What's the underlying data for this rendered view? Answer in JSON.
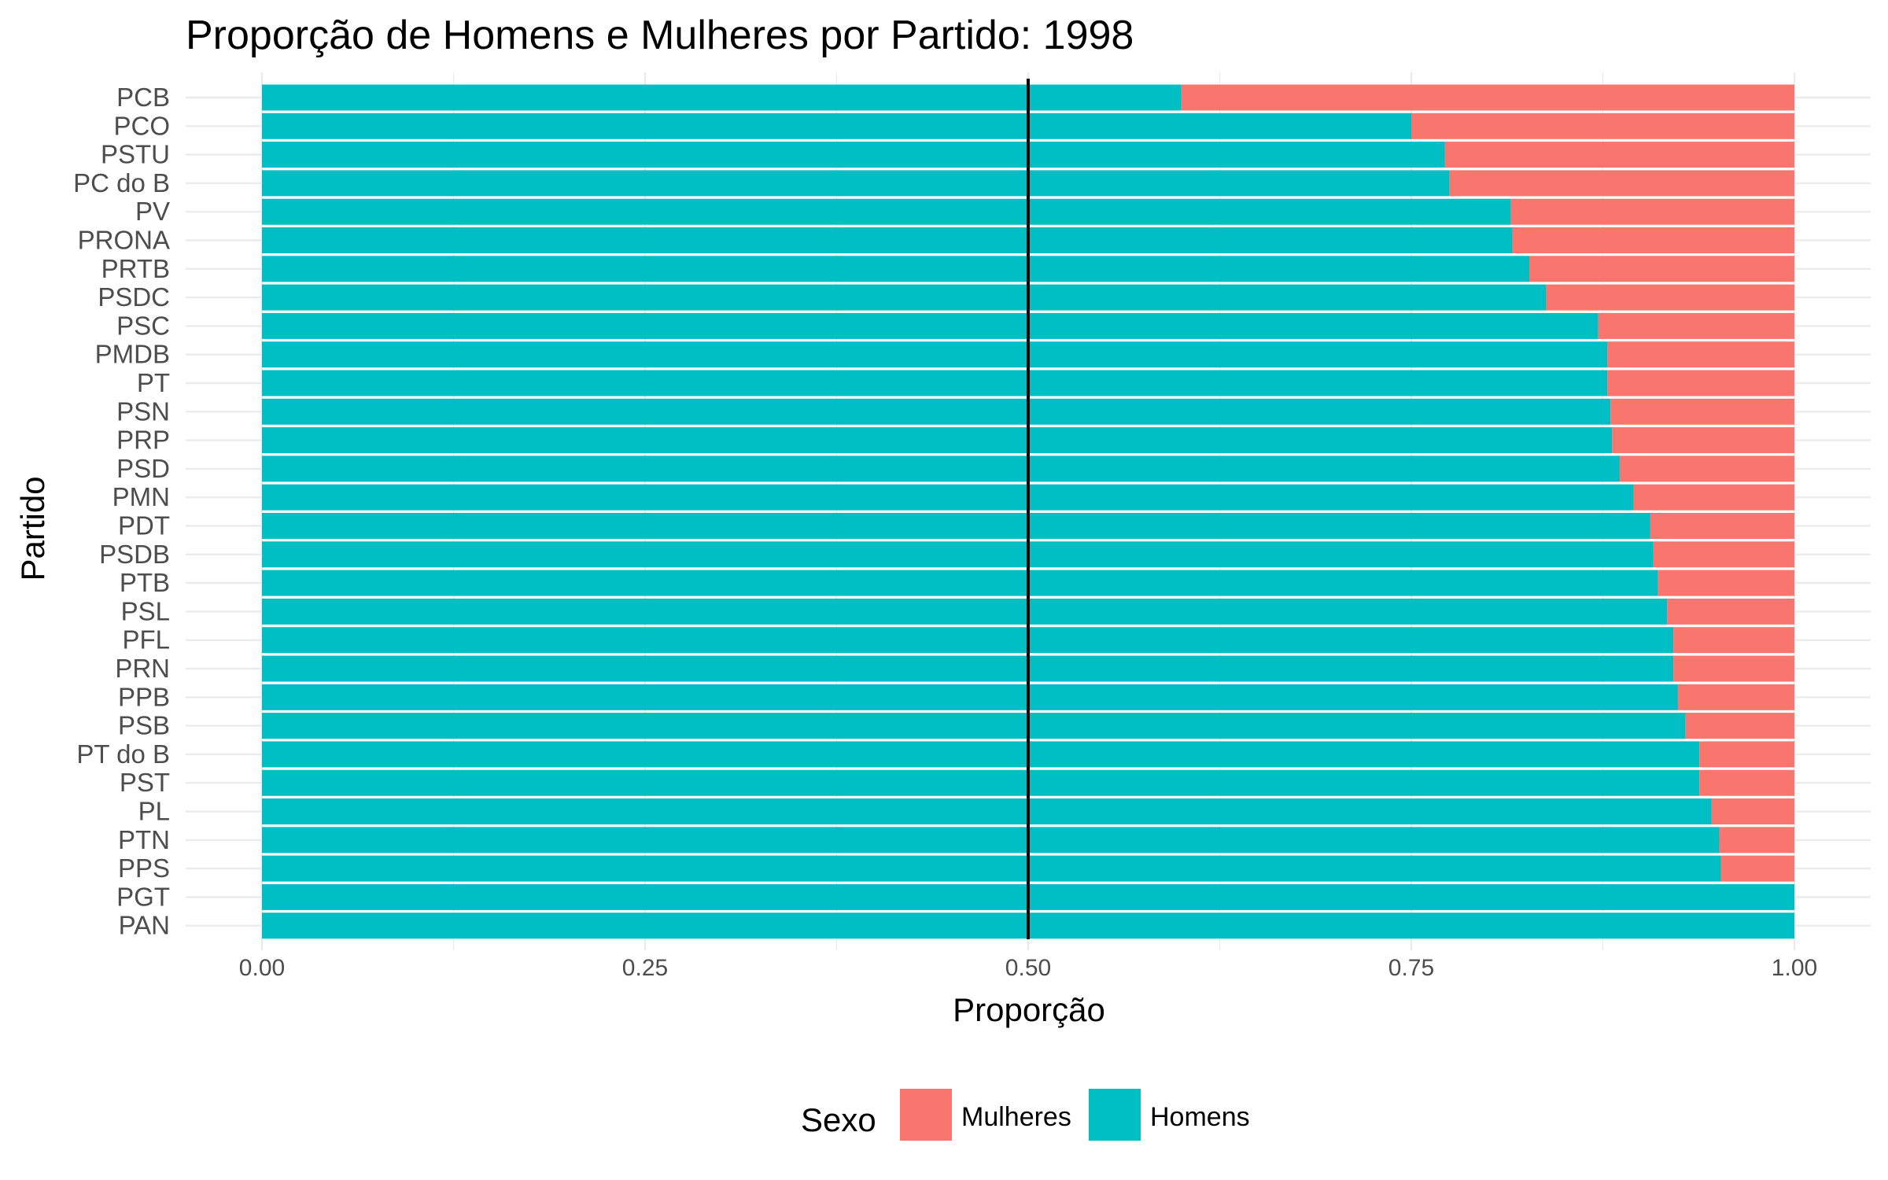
{
  "chart_data": {
    "type": "bar",
    "orientation": "horizontal",
    "stacked": true,
    "title": "Proporção de Homens e Mulheres por Partido: 1998",
    "xlabel": "Proporção",
    "ylabel": "Partido",
    "xlim": [
      0,
      1
    ],
    "xticks": [
      "0.00",
      "0.25",
      "0.50",
      "0.75",
      "1.00"
    ],
    "xtick_values": [
      0,
      0.25,
      0.5,
      0.75,
      1.0
    ],
    "reference_line": 0.5,
    "grid": true,
    "legend": {
      "title": "Sexo",
      "position": "bottom"
    },
    "categories": [
      "PCB",
      "PCO",
      "PSTU",
      "PC do B",
      "PV",
      "PRONA",
      "PRTB",
      "PSDC",
      "PSC",
      "PMDB",
      "PT",
      "PSN",
      "PRP",
      "PSD",
      "PMN",
      "PDT",
      "PSDB",
      "PTB",
      "PSL",
      "PFL",
      "PRN",
      "PPB",
      "PSB",
      "PT do B",
      "PST",
      "PL",
      "PTN",
      "PPS",
      "PGT",
      "PAN"
    ],
    "series": [
      {
        "name": "Homens",
        "color": "#00BFC4",
        "values": [
          0.6,
          0.75,
          0.772,
          0.775,
          0.815,
          0.816,
          0.827,
          0.838,
          0.872,
          0.878,
          0.878,
          0.88,
          0.881,
          0.886,
          0.895,
          0.906,
          0.908,
          0.911,
          0.917,
          0.921,
          0.921,
          0.924,
          0.929,
          0.938,
          0.938,
          0.946,
          0.951,
          0.952,
          1.0,
          1.0
        ]
      },
      {
        "name": "Mulheres",
        "color": "#F8766D",
        "values": [
          0.4,
          0.25,
          0.228,
          0.225,
          0.185,
          0.184,
          0.173,
          0.162,
          0.128,
          0.122,
          0.122,
          0.12,
          0.119,
          0.114,
          0.105,
          0.094,
          0.092,
          0.089,
          0.083,
          0.079,
          0.079,
          0.076,
          0.071,
          0.062,
          0.062,
          0.054,
          0.049,
          0.048,
          0.0,
          0.0
        ]
      }
    ],
    "legend_order": [
      "Mulheres",
      "Homens"
    ]
  }
}
